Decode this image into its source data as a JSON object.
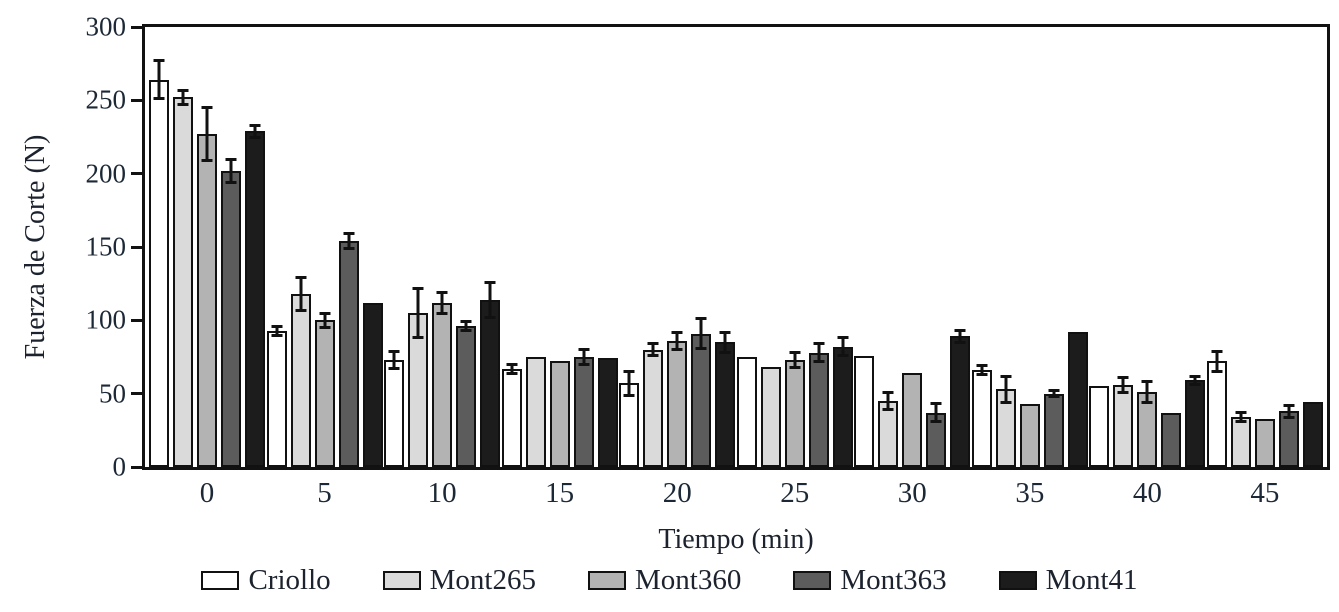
{
  "figure": {
    "y_axis_title": "Fuerza de Corte (N)",
    "x_axis_title": "Tiempo (min)"
  },
  "chart_data": {
    "type": "bar",
    "title": "",
    "xlabel": "Tiempo (min)",
    "ylabel": "Fuerza de Corte (N)",
    "ylim": [
      0,
      300
    ],
    "yticks": [
      0,
      50,
      100,
      150,
      200,
      250,
      300
    ],
    "grid": false,
    "error_bars": true,
    "legend_position": "bottom",
    "categories": [
      "0",
      "5",
      "10",
      "15",
      "20",
      "25",
      "30",
      "35",
      "40",
      "45"
    ],
    "series": [
      {
        "name": "Criollo",
        "color": "#ffffff",
        "values": [
          264,
          93,
          73,
          67,
          57,
          75,
          76,
          66,
          55,
          72
        ],
        "errors": [
          13,
          3,
          6,
          3,
          8,
          0,
          0,
          3,
          0,
          7
        ]
      },
      {
        "name": "Mont265",
        "color": "#dadada",
        "values": [
          252,
          118,
          105,
          75,
          80,
          68,
          45,
          53,
          56,
          34
        ],
        "errors": [
          5,
          11,
          17,
          0,
          4,
          0,
          6,
          9,
          5,
          3
        ]
      },
      {
        "name": "Mont360",
        "color": "#b3b3b3",
        "values": [
          227,
          100,
          112,
          72,
          86,
          73,
          64,
          43,
          51,
          33
        ],
        "errors": [
          18,
          5,
          7,
          0,
          6,
          5,
          0,
          0,
          7,
          0
        ]
      },
      {
        "name": "Mont363",
        "color": "#5c5c5c",
        "values": [
          202,
          154,
          96,
          75,
          91,
          78,
          37,
          50,
          37,
          38
        ],
        "errors": [
          8,
          5,
          3,
          5,
          10,
          6,
          6,
          2,
          0,
          4
        ]
      },
      {
        "name": "Mont41",
        "color": "#1c1c1c",
        "values": [
          229,
          112,
          114,
          74,
          85,
          82,
          89,
          92,
          59,
          44
        ],
        "errors": [
          4,
          0,
          12,
          0,
          7,
          6,
          4,
          0,
          3,
          0
        ]
      }
    ]
  }
}
